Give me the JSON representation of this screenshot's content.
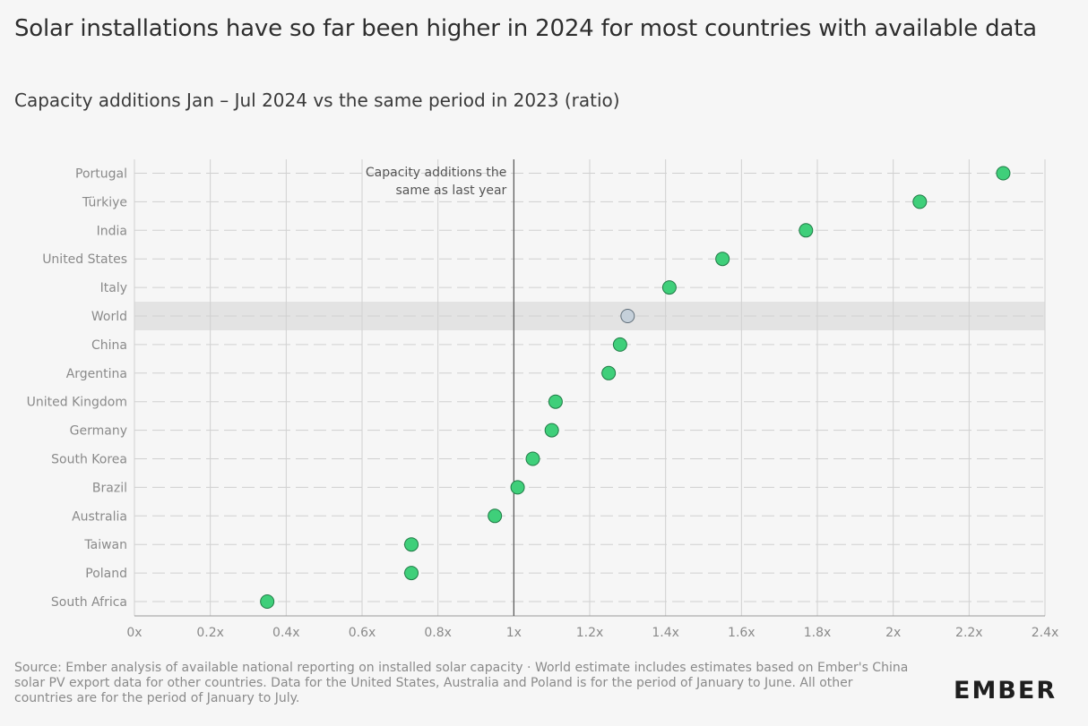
{
  "header": {
    "title": "Solar installations have so far been higher in 2024 for most countries with available data",
    "subtitle": "Capacity additions Jan – Jul 2024 vs the same period in 2023 (ratio)"
  },
  "footer": {
    "source": "Source: Ember analysis of available national reporting on installed solar capacity · World estimate includes estimates based on Ember's China solar PV export data for other countries. Data for the United States, Australia and Poland is for the period of January to June. All other countries are for the period of January to July.",
    "logo": "EMBER"
  },
  "chart_data": {
    "type": "scatter",
    "categories": [
      "Portugal",
      "Türkiye",
      "India",
      "United States",
      "Italy",
      "World",
      "China",
      "Argentina",
      "United Kingdom",
      "Germany",
      "South Korea",
      "Brazil",
      "Australia",
      "Taiwan",
      "Poland",
      "South Africa"
    ],
    "values": [
      2.29,
      2.07,
      1.77,
      1.55,
      1.41,
      1.3,
      1.28,
      1.25,
      1.11,
      1.1,
      1.05,
      1.01,
      0.95,
      0.73,
      0.73,
      0.35
    ],
    "highlight": "World",
    "xlim": [
      0,
      2.4
    ],
    "xticks": [
      0,
      0.2,
      0.4,
      0.6,
      0.8,
      1,
      1.2,
      1.4,
      1.6,
      1.8,
      2,
      2.2,
      2.4
    ],
    "xtick_labels": [
      "0x",
      "0.2x",
      "0.4x",
      "0.6x",
      "0.8x",
      "1x",
      "1.2x",
      "1.4x",
      "1.6x",
      "1.8x",
      "2x",
      "2.2x",
      "2.4x"
    ],
    "reference_line": {
      "x": 1,
      "label_lines": [
        "Capacity additions the",
        "same as last year"
      ]
    },
    "colors": {
      "point": "#3fcf7a",
      "point_stroke": "#1f7a45",
      "highlight_point": "#c5d0da",
      "highlight_stroke": "#5f6d78",
      "highlight_band": "#e3e3e3",
      "grid": "#d0d0d0"
    }
  }
}
